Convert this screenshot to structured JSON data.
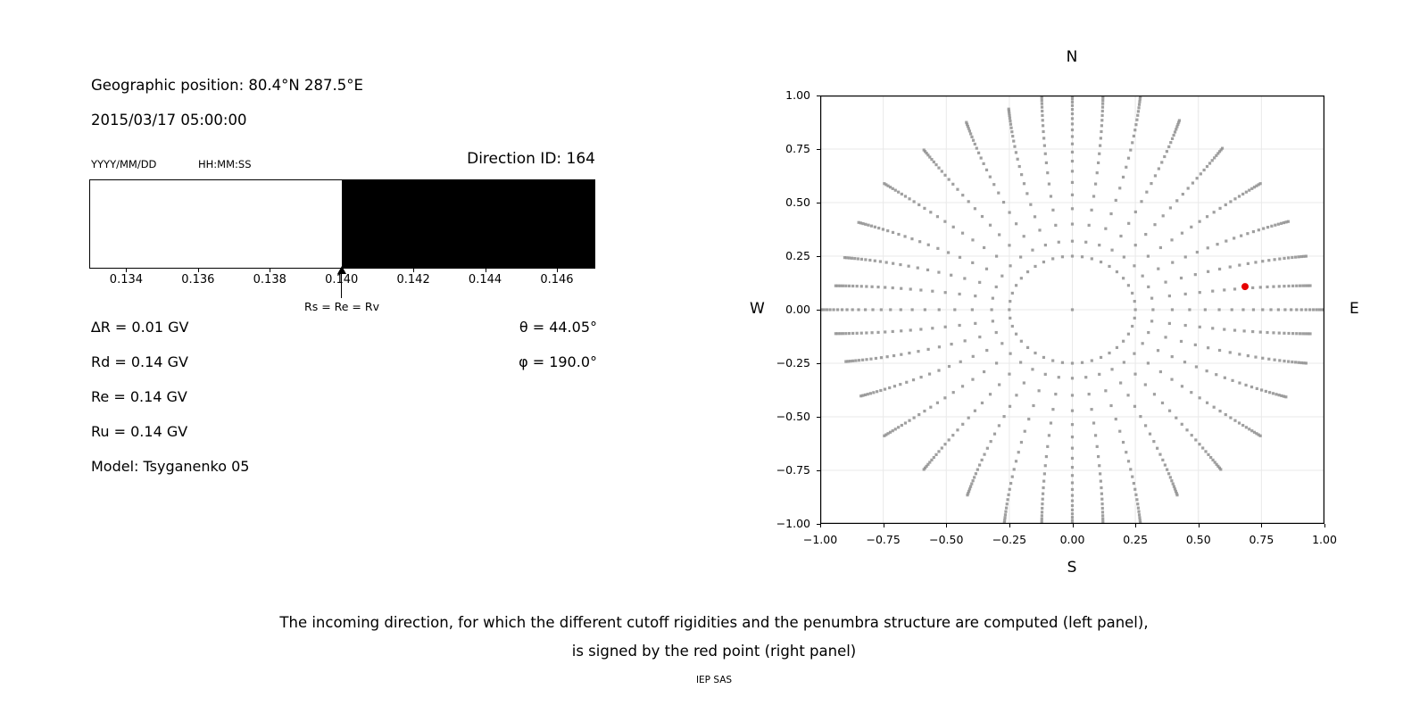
{
  "left_panel": {
    "geo_position": "Geographic position: 80.4°N 287.5°E",
    "datetime": "2015/03/17 05:00:00",
    "date_format_label": "YYYY/MM/DD",
    "time_format_label": "HH:MM:SS",
    "direction_id": "Direction ID: 164",
    "values": {
      "delta_r": "∆R = 0.01 GV",
      "rd": "Rd = 0.14 GV",
      "re": "Re = 0.14 GV",
      "ru": "Ru = 0.14 GV",
      "model": "Model: Tsyganenko 05",
      "theta": "θ = 44.05°",
      "phi": "φ = 190.0°"
    }
  },
  "footer": {
    "line1": "The incoming direction, for which the different cutoff rigidities and the penumbra structure are computed (left panel),",
    "line2": "is signed by the red point (right panel)",
    "credit": "IEP SAS"
  },
  "colors": {
    "dot_gray": "#8f8f8f",
    "red_point": "#e60000",
    "grid": "#e9e9e9",
    "black": "#000000"
  },
  "chart_data": [
    {
      "name": "penumbra-structure",
      "type": "area",
      "description": "Penumbra band: white (allowed) below 0.140 GV, black (forbidden) above 0.140 GV",
      "axis_min": 0.13297,
      "axis_max": 0.14707,
      "black_from": 0.14,
      "tick_values": [
        0.134,
        0.136,
        0.138,
        0.14,
        0.142,
        0.144,
        0.146
      ],
      "tick_labels": [
        "0.134",
        "0.136",
        "0.138",
        "0.140",
        "0.142",
        "0.144",
        "0.146"
      ],
      "arrow_value": 0.14,
      "arrow_label": "Rs = Re = Rv"
    },
    {
      "name": "incoming-directions",
      "type": "scatter",
      "title_top": "N",
      "title_bottom": "S",
      "title_left": "W",
      "title_right": "E",
      "xlim": [
        -1.0,
        1.0
      ],
      "ylim": [
        -1.0,
        1.0
      ],
      "grid": true,
      "x_tick_values": [
        -1.0,
        -0.75,
        -0.5,
        -0.25,
        0.0,
        0.25,
        0.5,
        0.75,
        1.0
      ],
      "x_tick_labels": [
        "−1.00",
        "−0.75",
        "−0.50",
        "−0.25",
        "0.00",
        "0.25",
        "0.50",
        "0.75",
        "1.00"
      ],
      "y_tick_values": [
        1.0,
        0.75,
        0.5,
        0.25,
        0.0,
        -0.25,
        -0.5,
        -0.75,
        -1.0
      ],
      "y_tick_labels": [
        "1.00",
        "0.75",
        "0.50",
        "0.25",
        "0.00",
        "−0.25",
        "−0.50",
        "−0.75",
        "−1.00"
      ],
      "center_point": {
        "x": 0.0,
        "y": 0.0
      },
      "inner_circle": {
        "radius": 0.25,
        "n_dots": 40
      },
      "ray_model": {
        "r_start": 0.32,
        "n_dots": 22,
        "spacing_ratio": 0.9,
        "drift_amp_deg": -5
      },
      "rays": [
        {
          "angle_deg": 0,
          "r_end": 1.0
        },
        {
          "angle_deg": 10,
          "r_end": 0.95
        },
        {
          "angle_deg": 20,
          "r_end": 0.96
        },
        {
          "angle_deg": 30,
          "r_end": 0.95
        },
        {
          "angle_deg": 40,
          "r_end": 0.95
        },
        {
          "angle_deg": 50,
          "r_end": 0.96
        },
        {
          "angle_deg": 60,
          "r_end": 0.98
        },
        {
          "angle_deg": 70,
          "r_end": 1.04
        },
        {
          "angle_deg": 80,
          "r_end": 1.03
        },
        {
          "angle_deg": 90,
          "r_end": 1.03
        },
        {
          "angle_deg": 100,
          "r_end": 1.03
        },
        {
          "angle_deg": 110,
          "r_end": 0.97
        },
        {
          "angle_deg": 120,
          "r_end": 0.97
        },
        {
          "angle_deg": 130,
          "r_end": 0.95
        },
        {
          "angle_deg": 140,
          "r_end": 0.95
        },
        {
          "angle_deg": 150,
          "r_end": 0.94
        },
        {
          "angle_deg": 160,
          "r_end": 0.935
        },
        {
          "angle_deg": 170,
          "r_end": 0.945
        },
        {
          "angle_deg": 180,
          "r_end": 1.005
        },
        {
          "angle_deg": 190,
          "r_end": 0.945
        },
        {
          "angle_deg": 200,
          "r_end": 0.93
        },
        {
          "angle_deg": 210,
          "r_end": 0.93
        },
        {
          "angle_deg": 220,
          "r_end": 0.95
        },
        {
          "angle_deg": 230,
          "r_end": 0.95
        },
        {
          "angle_deg": 240,
          "r_end": 0.96
        },
        {
          "angle_deg": 250,
          "r_end": 1.04
        },
        {
          "angle_deg": 260,
          "r_end": 1.03
        },
        {
          "angle_deg": 270,
          "r_end": 1.03
        },
        {
          "angle_deg": 280,
          "r_end": 1.03
        },
        {
          "angle_deg": 290,
          "r_end": 1.04
        },
        {
          "angle_deg": 300,
          "r_end": 0.96
        },
        {
          "angle_deg": 310,
          "r_end": 0.95
        },
        {
          "angle_deg": 320,
          "r_end": 0.95
        },
        {
          "angle_deg": 330,
          "r_end": 0.94
        },
        {
          "angle_deg": 340,
          "r_end": 0.96
        },
        {
          "angle_deg": 350,
          "r_end": 0.95
        }
      ],
      "red_point": {
        "x": 0.685,
        "y": 0.108
      }
    }
  ]
}
